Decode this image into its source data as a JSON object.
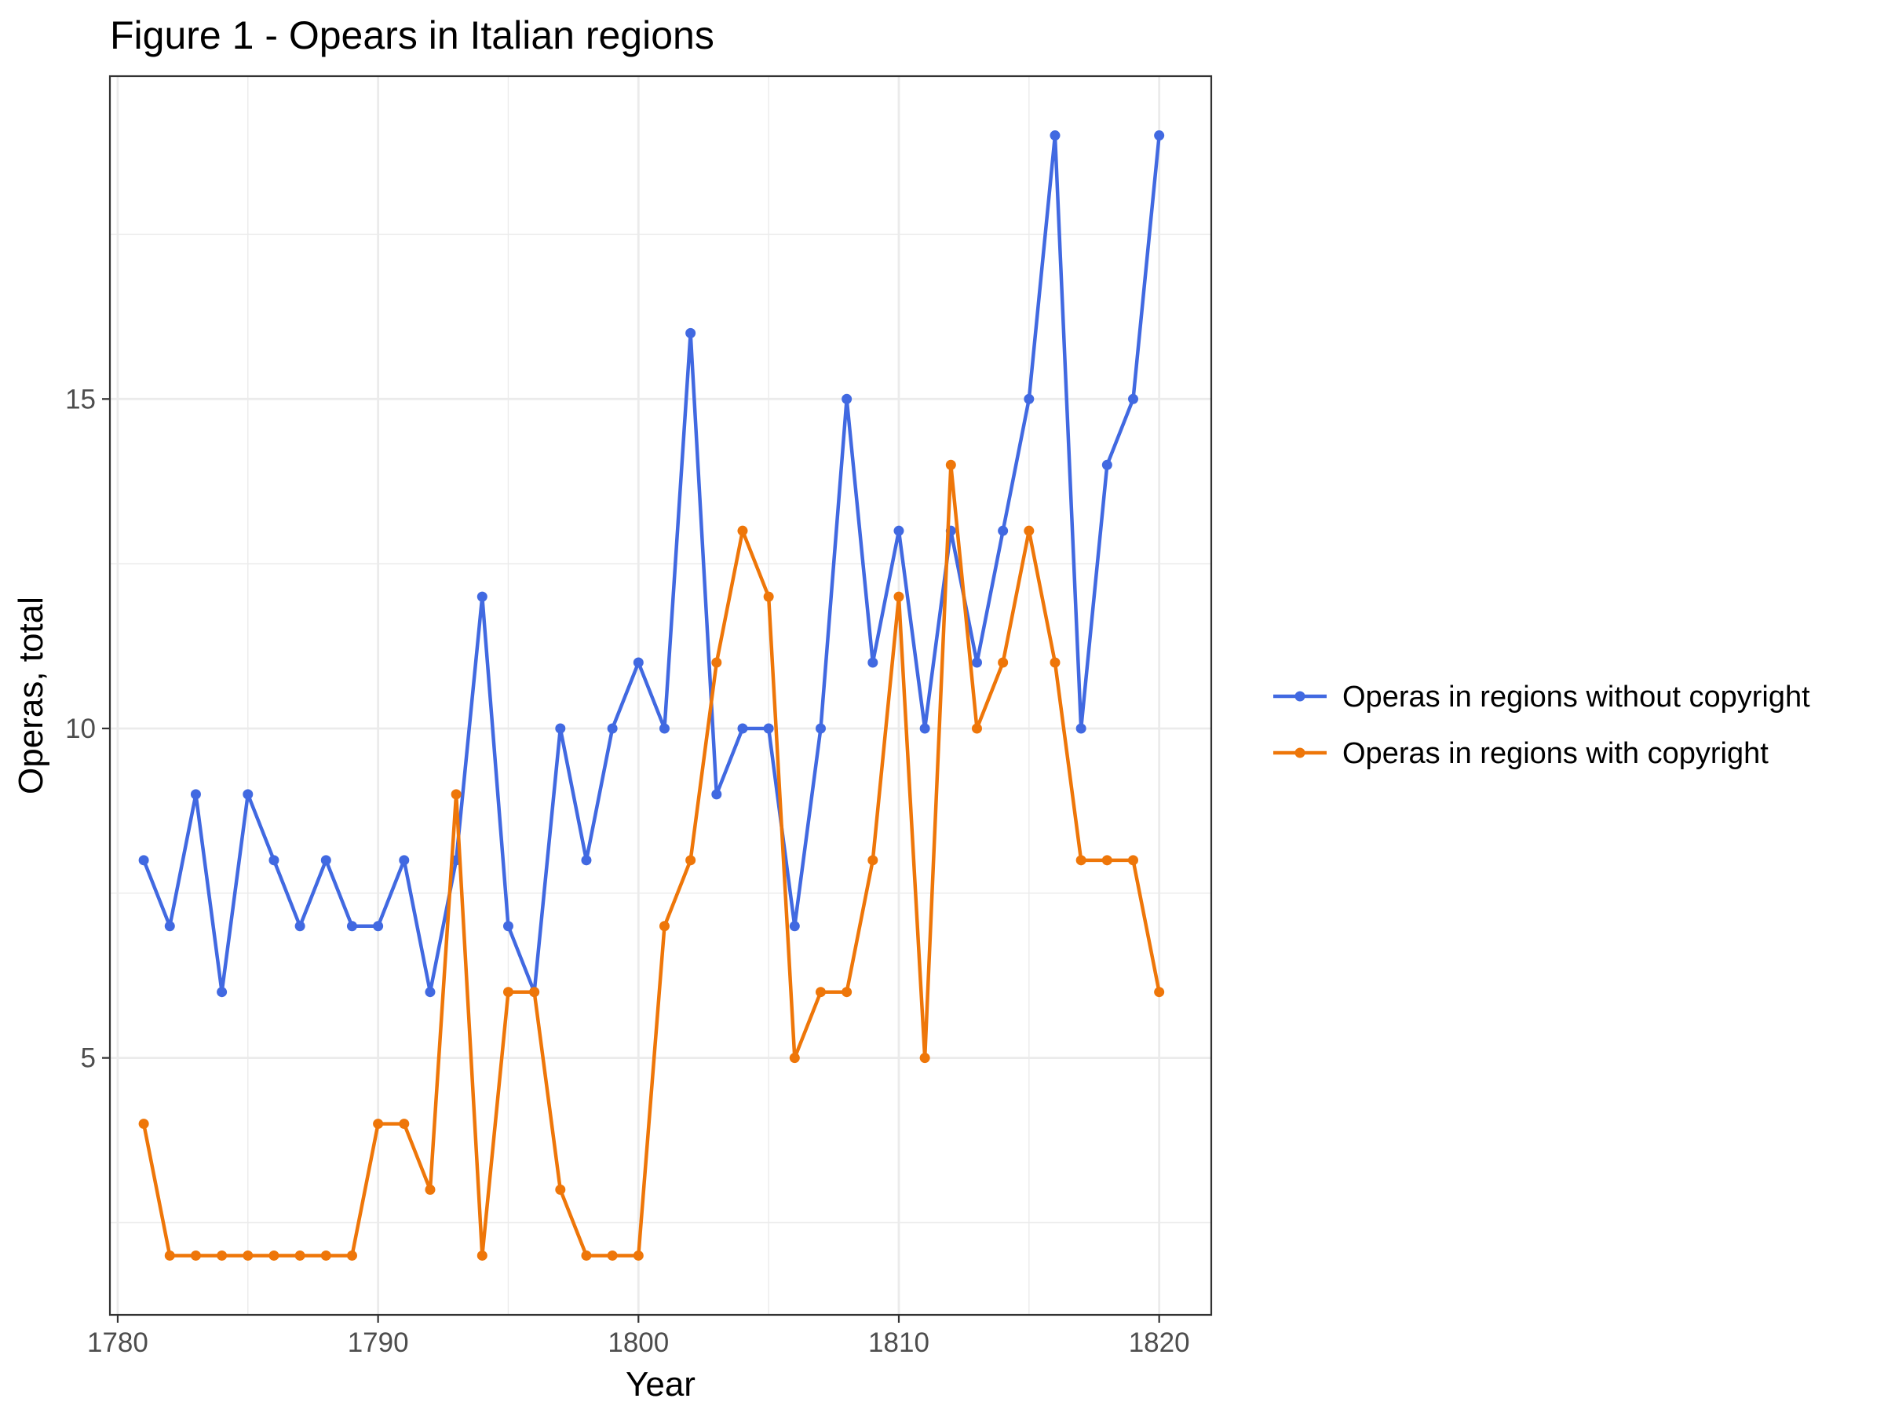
{
  "chart_data": {
    "type": "line",
    "title": "Figure 1 - Opears in Italian regions",
    "xlabel": "Year",
    "ylabel": "Operas, total",
    "xlim": [
      1779.7,
      1822.0
    ],
    "ylim": [
      1.1,
      19.9
    ],
    "x_ticks": [
      1780,
      1790,
      1800,
      1810,
      1820
    ],
    "y_ticks": [
      5,
      10,
      15
    ],
    "grid": true,
    "legend_position": "right",
    "x": [
      1781,
      1782,
      1783,
      1784,
      1785,
      1786,
      1787,
      1788,
      1789,
      1790,
      1791,
      1792,
      1793,
      1794,
      1795,
      1796,
      1797,
      1798,
      1799,
      1800,
      1801,
      1802,
      1803,
      1804,
      1805,
      1806,
      1807,
      1808,
      1809,
      1810,
      1811,
      1812,
      1813,
      1814,
      1815,
      1816,
      1817,
      1818,
      1819,
      1820
    ],
    "series": [
      {
        "name": "Operas in regions without copyright",
        "color": "#4169e1",
        "values": [
          8,
          7,
          9,
          6,
          9,
          8,
          7,
          8,
          7,
          7,
          8,
          6,
          8,
          12,
          7,
          6,
          10,
          8,
          10,
          11,
          10,
          16,
          9,
          10,
          10,
          7,
          10,
          15,
          11,
          13,
          10,
          13,
          11,
          13,
          15,
          19,
          10,
          14,
          15,
          19
        ]
      },
      {
        "name": "Operas in regions with copyright",
        "color": "#ee7609",
        "values": [
          4,
          2,
          2,
          2,
          2,
          2,
          2,
          2,
          2,
          4,
          4,
          3,
          9,
          2,
          6,
          6,
          3,
          2,
          2,
          2,
          7,
          8,
          11,
          13,
          12,
          5,
          6,
          6,
          8,
          12,
          5,
          14,
          10,
          11,
          13,
          11,
          8,
          8,
          8,
          6
        ]
      }
    ]
  }
}
